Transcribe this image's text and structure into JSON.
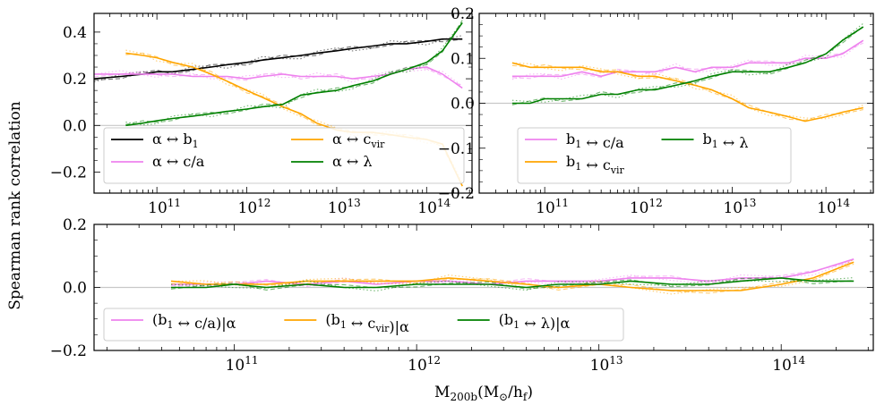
{
  "figure": {
    "ylabel": "Spearman rank correlation",
    "xlabel": "M200b(M⊙/hf)"
  },
  "chart_data": [
    {
      "type": "line",
      "panel": "top-left",
      "xscale": "log",
      "xlim": [
        20000000000.0,
        320000000000000.0
      ],
      "ylim": [
        -0.29,
        0.48
      ],
      "yticks": [
        -0.2,
        0.0,
        0.2,
        0.4
      ],
      "ytick_labels": [
        "−0.2",
        "0.0",
        "0.2",
        "0.4"
      ],
      "xtick_labels": [
        "10^11",
        "10^12",
        "10^13",
        "10^14"
      ],
      "grid": false,
      "zero_line": true,
      "legend": {
        "placement": "lower-left",
        "columns": 2
      },
      "series": [
        {
          "name": "α ↔ b1",
          "color": "#000000",
          "x": [
            20000000000.0,
            40000000000.0,
            70000000000.0,
            100000000000.0,
            150000000000.0,
            250000000000.0,
            400000000000.0,
            600000000000.0,
            1000000000000.0,
            1500000000000.0,
            2500000000000.0,
            4000000000000.0,
            6000000000000.0,
            10000000000000.0,
            15000000000000.0,
            25000000000000.0,
            40000000000000.0,
            60000000000000.0,
            100000000000000.0,
            150000000000000.0,
            250000000000000.0
          ],
          "y": [
            0.2,
            0.21,
            0.22,
            0.23,
            0.23,
            0.24,
            0.25,
            0.26,
            0.27,
            0.28,
            0.29,
            0.3,
            0.31,
            0.32,
            0.33,
            0.34,
            0.35,
            0.35,
            0.36,
            0.37,
            0.37
          ]
        },
        {
          "name": "α ↔ c/a",
          "color": "#ee82ee",
          "x": [
            20000000000.0,
            40000000000.0,
            70000000000.0,
            100000000000.0,
            150000000000.0,
            250000000000.0,
            400000000000.0,
            600000000000.0,
            1000000000000.0,
            1500000000000.0,
            2500000000000.0,
            4000000000000.0,
            6000000000000.0,
            10000000000000.0,
            15000000000000.0,
            25000000000000.0,
            40000000000000.0,
            60000000000000.0,
            100000000000000.0,
            150000000000000.0,
            250000000000000.0
          ],
          "y": [
            0.22,
            0.22,
            0.22,
            0.22,
            0.22,
            0.21,
            0.21,
            0.21,
            0.2,
            0.21,
            0.22,
            0.21,
            0.21,
            0.21,
            0.2,
            0.21,
            0.22,
            0.24,
            0.25,
            0.22,
            0.16
          ]
        },
        {
          "name": "α ↔ cvir",
          "color": "#ffa500",
          "x": [
            45000000000.0,
            70000000000.0,
            100000000000.0,
            150000000000.0,
            250000000000.0,
            400000000000.0,
            600000000000.0,
            1000000000000.0,
            1500000000000.0,
            2500000000000.0,
            4000000000000.0,
            6000000000000.0,
            10000000000000.0,
            15000000000000.0,
            25000000000000.0,
            40000000000000.0,
            60000000000000.0,
            100000000000000.0,
            150000000000000.0,
            250000000000000.0
          ],
          "y": [
            0.31,
            0.3,
            0.29,
            0.27,
            0.25,
            0.22,
            0.19,
            0.15,
            0.12,
            0.08,
            0.05,
            0.01,
            -0.02,
            -0.03,
            -0.03,
            -0.04,
            -0.05,
            -0.06,
            -0.08,
            -0.26
          ]
        },
        {
          "name": "α ↔ λ",
          "color": "#008000",
          "x": [
            45000000000.0,
            70000000000.0,
            100000000000.0,
            150000000000.0,
            250000000000.0,
            400000000000.0,
            600000000000.0,
            1000000000000.0,
            1500000000000.0,
            2500000000000.0,
            4000000000000.0,
            6000000000000.0,
            10000000000000.0,
            15000000000000.0,
            25000000000000.0,
            40000000000000.0,
            60000000000000.0,
            100000000000000.0,
            150000000000000.0,
            250000000000000.0
          ],
          "y": [
            0.0,
            0.01,
            0.02,
            0.03,
            0.04,
            0.05,
            0.06,
            0.07,
            0.08,
            0.09,
            0.13,
            0.14,
            0.15,
            0.17,
            0.19,
            0.22,
            0.24,
            0.27,
            0.32,
            0.44
          ]
        }
      ]
    },
    {
      "type": "line",
      "panel": "top-right",
      "xscale": "log",
      "xlim": [
        20000000000.0,
        320000000000000.0
      ],
      "ylim": [
        -0.2,
        0.2
      ],
      "yticks": [
        -0.2,
        -0.1,
        0.0,
        0.1,
        0.2
      ],
      "ytick_labels": [
        "−0.2",
        "−0.1",
        "0.0",
        "0.1",
        "0.2"
      ],
      "xtick_labels": [
        "10^11",
        "10^12",
        "10^13",
        "10^14"
      ],
      "grid": false,
      "zero_line": true,
      "legend": {
        "placement": "lower-left",
        "columns": 2
      },
      "series": [
        {
          "name": "b1 ↔ c/a",
          "color": "#ee82ee",
          "x": [
            45000000000.0,
            70000000000.0,
            100000000000.0,
            150000000000.0,
            250000000000.0,
            400000000000.0,
            600000000000.0,
            1000000000000.0,
            1500000000000.0,
            2500000000000.0,
            4000000000000.0,
            6000000000000.0,
            10000000000000.0,
            15000000000000.0,
            25000000000000.0,
            40000000000000.0,
            60000000000000.0,
            100000000000000.0,
            150000000000000.0,
            250000000000000.0
          ],
          "y": [
            0.06,
            0.06,
            0.06,
            0.06,
            0.07,
            0.06,
            0.07,
            0.07,
            0.07,
            0.08,
            0.07,
            0.08,
            0.08,
            0.09,
            0.09,
            0.09,
            0.1,
            0.1,
            0.11,
            0.14
          ]
        },
        {
          "name": "b1 ↔ cvir",
          "color": "#ffa500",
          "x": [
            45000000000.0,
            70000000000.0,
            100000000000.0,
            150000000000.0,
            250000000000.0,
            400000000000.0,
            600000000000.0,
            1000000000000.0,
            1500000000000.0,
            2500000000000.0,
            4000000000000.0,
            6000000000000.0,
            10000000000000.0,
            15000000000000.0,
            25000000000000.0,
            40000000000000.0,
            60000000000000.0,
            100000000000000.0,
            150000000000000.0,
            250000000000000.0
          ],
          "y": [
            0.09,
            0.08,
            0.08,
            0.08,
            0.08,
            0.07,
            0.07,
            0.06,
            0.06,
            0.05,
            0.04,
            0.03,
            0.01,
            -0.01,
            -0.02,
            -0.03,
            -0.04,
            -0.03,
            -0.02,
            -0.01
          ]
        },
        {
          "name": "b1 ↔ λ",
          "color": "#008000",
          "x": [
            45000000000.0,
            70000000000.0,
            100000000000.0,
            150000000000.0,
            250000000000.0,
            400000000000.0,
            600000000000.0,
            1000000000000.0,
            1500000000000.0,
            2500000000000.0,
            4000000000000.0,
            6000000000000.0,
            10000000000000.0,
            15000000000000.0,
            25000000000000.0,
            40000000000000.0,
            60000000000000.0,
            100000000000000.0,
            150000000000000.0,
            250000000000000.0
          ],
          "y": [
            0.0,
            0.0,
            0.01,
            0.01,
            0.01,
            0.02,
            0.02,
            0.03,
            0.03,
            0.04,
            0.05,
            0.06,
            0.07,
            0.07,
            0.07,
            0.08,
            0.09,
            0.11,
            0.14,
            0.17
          ]
        }
      ]
    },
    {
      "type": "line",
      "panel": "bottom",
      "xscale": "log",
      "xlim": [
        17000000000.0,
        320000000000000.0
      ],
      "ylim": [
        -0.2,
        0.2
      ],
      "yticks": [
        -0.2,
        0.0,
        0.2
      ],
      "ytick_labels": [
        "−0.2",
        "0.0",
        "0.2"
      ],
      "xtick_labels": [
        "10^11",
        "10^12",
        "10^13",
        "10^14"
      ],
      "grid": false,
      "zero_line": true,
      "legend": {
        "placement": "lower-left",
        "columns": 3
      },
      "series": [
        {
          "name": "(b1 ↔ c/a)|α",
          "color": "#ee82ee",
          "x": [
            45000000000.0,
            70000000000.0,
            100000000000.0,
            150000000000.0,
            250000000000.0,
            400000000000.0,
            600000000000.0,
            1000000000000.0,
            1500000000000.0,
            2500000000000.0,
            4000000000000.0,
            6000000000000.0,
            10000000000000.0,
            15000000000000.0,
            25000000000000.0,
            40000000000000.0,
            60000000000000.0,
            100000000000000.0,
            150000000000000.0,
            250000000000000.0
          ],
          "y": [
            0.01,
            0.01,
            0.01,
            0.02,
            0.01,
            0.02,
            0.01,
            0.02,
            0.02,
            0.01,
            0.02,
            0.02,
            0.02,
            0.03,
            0.03,
            0.02,
            0.03,
            0.03,
            0.05,
            0.09
          ]
        },
        {
          "name": "(b1 ↔ cvir)|α",
          "color": "#ffa500",
          "x": [
            45000000000.0,
            70000000000.0,
            100000000000.0,
            150000000000.0,
            250000000000.0,
            400000000000.0,
            600000000000.0,
            1000000000000.0,
            1500000000000.0,
            2500000000000.0,
            4000000000000.0,
            6000000000000.0,
            10000000000000.0,
            15000000000000.0,
            25000000000000.0,
            40000000000000.0,
            60000000000000.0,
            100000000000000.0,
            150000000000000.0,
            250000000000000.0
          ],
          "y": [
            0.02,
            0.01,
            0.01,
            0.01,
            0.02,
            0.02,
            0.02,
            0.02,
            0.03,
            0.02,
            0.01,
            0.0,
            0.01,
            0.0,
            -0.01,
            -0.01,
            -0.01,
            0.01,
            0.03,
            0.08
          ]
        },
        {
          "name": "(b1 ↔ λ)|α",
          "color": "#008000",
          "x": [
            45000000000.0,
            70000000000.0,
            100000000000.0,
            150000000000.0,
            250000000000.0,
            400000000000.0,
            600000000000.0,
            1000000000000.0,
            1500000000000.0,
            2500000000000.0,
            4000000000000.0,
            6000000000000.0,
            10000000000000.0,
            15000000000000.0,
            25000000000000.0,
            40000000000000.0,
            60000000000000.0,
            100000000000000.0,
            150000000000000.0,
            250000000000000.0
          ],
          "y": [
            0.0,
            0.0,
            0.01,
            0.0,
            0.01,
            0.0,
            0.0,
            0.01,
            0.01,
            0.01,
            0.0,
            0.01,
            0.01,
            0.02,
            0.01,
            0.01,
            0.02,
            0.03,
            0.02,
            0.02
          ]
        }
      ]
    }
  ]
}
